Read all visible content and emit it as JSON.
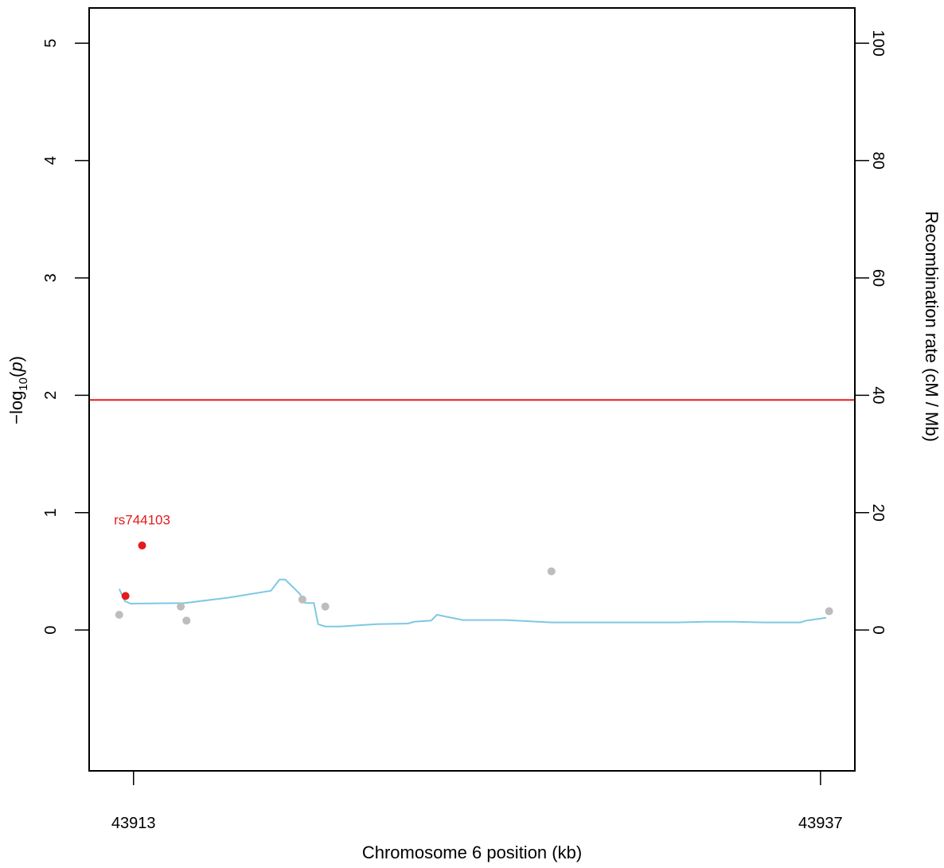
{
  "chart_data": {
    "type": "scatter",
    "title": "",
    "xlabel": "Chromosome 6 position (kb)",
    "ylabel_left_pre": "−log",
    "ylabel_left_sub": "10",
    "ylabel_left_open": "(",
    "ylabel_left_var": "p",
    "ylabel_left_close": ")",
    "ylabel_right": "Recombination rate (cM / Mb)",
    "xlim": [
      43911.45,
      43938.2
    ],
    "ylim_left": [
      -1.2,
      5.3
    ],
    "ylim_right": [
      -24,
      106
    ],
    "x_ticks": [
      43913,
      43937
    ],
    "y_ticks_left": [
      0,
      1,
      2,
      3,
      4,
      5
    ],
    "y_ticks_right": [
      0,
      20,
      40,
      60,
      80,
      100
    ],
    "threshold_line": {
      "y": 1.96,
      "color": "#e31a1c"
    },
    "snps": [
      {
        "x": 43912.5,
        "y": 0.13,
        "color": "#bdbdbd"
      },
      {
        "x": 43912.72,
        "y": 0.29,
        "color": "#e41a1c"
      },
      {
        "x": 43913.3,
        "y": 0.72,
        "color": "#e41a1c"
      },
      {
        "x": 43914.65,
        "y": 0.2,
        "color": "#bdbdbd"
      },
      {
        "x": 43914.85,
        "y": 0.08,
        "color": "#bdbdbd"
      },
      {
        "x": 43918.9,
        "y": 0.26,
        "color": "#bdbdbd"
      },
      {
        "x": 43919.7,
        "y": 0.2,
        "color": "#bdbdbd"
      },
      {
        "x": 43927.6,
        "y": 0.5,
        "color": "#bdbdbd"
      },
      {
        "x": 43937.3,
        "y": 0.16,
        "color": "#bdbdbd"
      }
    ],
    "annotations": [
      {
        "text": "rs744103",
        "x": 43913.3,
        "y": 0.9,
        "color": "#e41a1c"
      }
    ],
    "recombination": {
      "color": "#7ec8e3",
      "points": [
        [
          43912.5,
          7.0
        ],
        [
          43912.7,
          4.9
        ],
        [
          43912.9,
          4.5
        ],
        [
          43914.8,
          4.6
        ],
        [
          43916.3,
          5.5
        ],
        [
          43917.8,
          6.7
        ],
        [
          43918.1,
          8.6
        ],
        [
          43918.3,
          8.6
        ],
        [
          43918.8,
          6.2
        ],
        [
          43919.0,
          4.6
        ],
        [
          43919.3,
          4.6
        ],
        [
          43919.45,
          1.0
        ],
        [
          43919.7,
          0.6
        ],
        [
          43920.2,
          0.6
        ],
        [
          43921.5,
          1.0
        ],
        [
          43922.6,
          1.1
        ],
        [
          43922.8,
          1.4
        ],
        [
          43923.4,
          1.6
        ],
        [
          43923.6,
          2.6
        ],
        [
          43924.5,
          1.7
        ],
        [
          43926.0,
          1.7
        ],
        [
          43927.6,
          1.3
        ],
        [
          43930.0,
          1.3
        ],
        [
          43932.0,
          1.3
        ],
        [
          43933.0,
          1.4
        ],
        [
          43934.0,
          1.4
        ],
        [
          43935.0,
          1.3
        ],
        [
          43936.3,
          1.3
        ],
        [
          43936.5,
          1.6
        ],
        [
          43937.2,
          2.1
        ]
      ]
    }
  }
}
